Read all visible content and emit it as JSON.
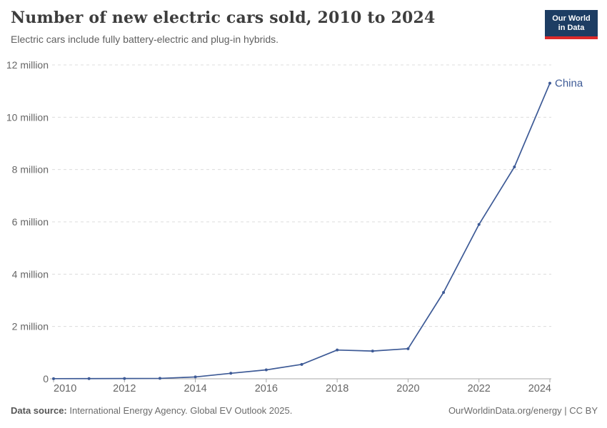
{
  "chart_data": {
    "type": "line",
    "title": "Number of new electric cars sold, 2010 to 2024",
    "subtitle": "Electric cars include fully battery-electric and plug-in hybrids.",
    "x": [
      2010,
      2011,
      2012,
      2013,
      2014,
      2015,
      2016,
      2017,
      2018,
      2019,
      2020,
      2021,
      2022,
      2023,
      2024
    ],
    "series": [
      {
        "name": "China",
        "color": "#3d5a96",
        "values": [
          0.005,
          0.006,
          0.01,
          0.016,
          0.07,
          0.21,
          0.34,
          0.55,
          1.1,
          1.06,
          1.15,
          3.3,
          5.9,
          8.1,
          11.3
        ]
      }
    ],
    "y_unit_label": "million",
    "ylim": [
      0,
      12
    ],
    "yticks": [
      {
        "value": 0,
        "label": "0"
      },
      {
        "value": 2,
        "label": "2 million"
      },
      {
        "value": 4,
        "label": "4 million"
      },
      {
        "value": 6,
        "label": "6 million"
      },
      {
        "value": 8,
        "label": "8 million"
      },
      {
        "value": 10,
        "label": "10 million"
      },
      {
        "value": 12,
        "label": "12 million"
      }
    ],
    "xticks": [
      2010,
      2012,
      2014,
      2016,
      2018,
      2020,
      2022,
      2024
    ],
    "grid": "horizontal-dashed",
    "legend": "end-of-line-label"
  },
  "branding": {
    "logo_line1": "Our World",
    "logo_line2": "in Data"
  },
  "footer": {
    "source_label": "Data source:",
    "source_text": "International Energy Agency. Global EV Outlook 2025.",
    "credit": "OurWorldinData.org/energy | CC BY"
  },
  "colors": {
    "navy": "#1d3d63",
    "red": "#dc2a2a",
    "series_blue": "#3d5a96",
    "axis_text_gray": "#666666"
  }
}
